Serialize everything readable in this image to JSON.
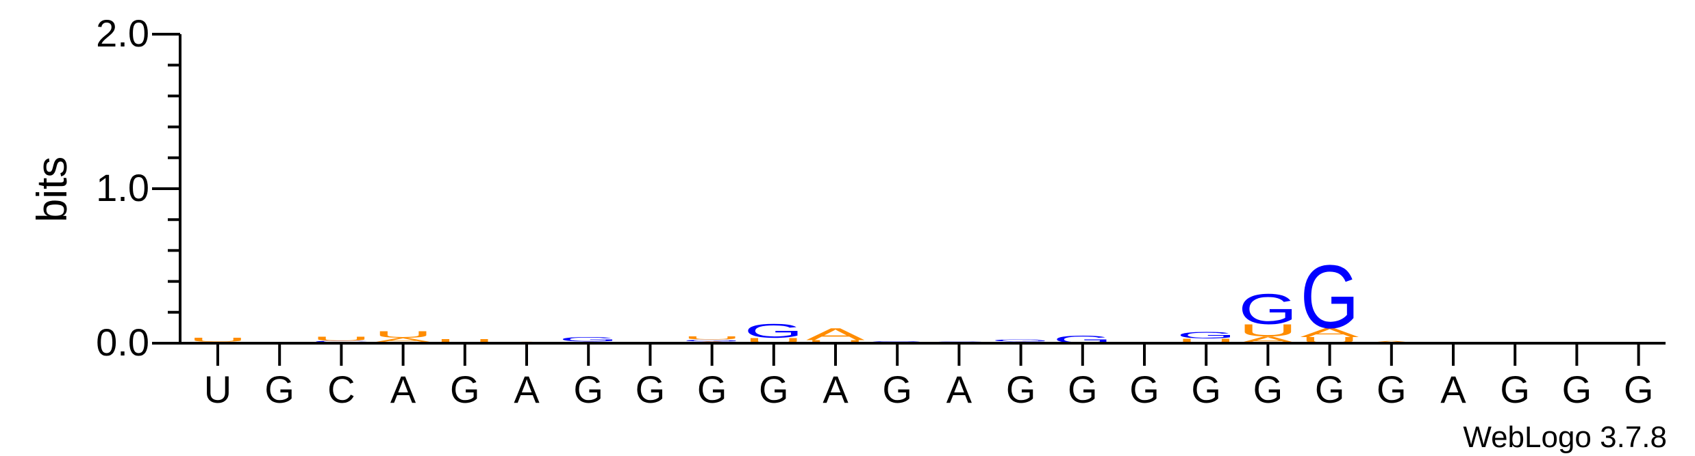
{
  "chart_data": {
    "type": "sequence-logo",
    "ylabel": "bits",
    "ylim": [
      0,
      2.0
    ],
    "y_ticks": [
      {
        "value": 0.0,
        "label": "0.0"
      },
      {
        "value": 1.0,
        "label": "1.0"
      },
      {
        "value": 2.0,
        "label": "2.0"
      }
    ],
    "x_labels": [
      "U",
      "G",
      "C",
      "A",
      "G",
      "A",
      "G",
      "G",
      "G",
      "G",
      "A",
      "G",
      "A",
      "G",
      "G",
      "G",
      "G",
      "G",
      "G",
      "G",
      "A",
      "G",
      "G",
      "G"
    ],
    "colors": {
      "A": "#FF8C00",
      "U": "#FF8C00",
      "G": "#0000FF",
      "C": "#0000FF"
    },
    "stacks": [
      [
        {
          "base": "A",
          "bits": 0.008
        },
        {
          "base": "U",
          "bits": 0.025
        }
      ],
      [],
      [
        {
          "base": "A",
          "bits": 0.006
        },
        {
          "base": "C",
          "bits": 0.01
        },
        {
          "base": "U",
          "bits": 0.025
        }
      ],
      [
        {
          "base": "G",
          "bits": 0.006
        },
        {
          "base": "A",
          "bits": 0.03
        },
        {
          "base": "U",
          "bits": 0.045
        }
      ],
      [
        {
          "base": "U",
          "bits": 0.025
        }
      ],
      [
        {
          "base": "A",
          "bits": 0.01
        }
      ],
      [
        {
          "base": "A",
          "bits": 0.01
        },
        {
          "base": "G",
          "bits": 0.03
        }
      ],
      [],
      [
        {
          "base": "A",
          "bits": 0.012
        },
        {
          "base": "G",
          "bits": 0.012
        },
        {
          "base": "U",
          "bits": 0.02
        }
      ],
      [
        {
          "base": "U",
          "bits": 0.035
        },
        {
          "base": "G",
          "bits": 0.09
        }
      ],
      [
        {
          "base": "U",
          "bits": 0.02
        },
        {
          "base": "A",
          "bits": 0.08
        }
      ],
      [
        {
          "base": "G",
          "bits": 0.015
        }
      ],
      [
        {
          "base": "G",
          "bits": 0.012
        }
      ],
      [
        {
          "base": "A",
          "bits": 0.01
        },
        {
          "base": "G",
          "bits": 0.015
        }
      ],
      [
        {
          "base": "G",
          "bits": 0.05
        }
      ],
      [],
      [
        {
          "base": "U",
          "bits": 0.03
        },
        {
          "base": "G",
          "bits": 0.045
        }
      ],
      [
        {
          "base": "A",
          "bits": 0.045
        },
        {
          "base": "U",
          "bits": 0.08
        },
        {
          "base": "G",
          "bits": 0.2
        }
      ],
      [
        {
          "base": "U",
          "bits": 0.04
        },
        {
          "base": "A",
          "bits": 0.06
        },
        {
          "base": "G",
          "bits": 0.42
        }
      ],
      [
        {
          "base": "A",
          "bits": 0.015
        }
      ],
      [],
      [],
      [],
      []
    ]
  },
  "footer": {
    "credit": "WebLogo 3.7.8"
  }
}
